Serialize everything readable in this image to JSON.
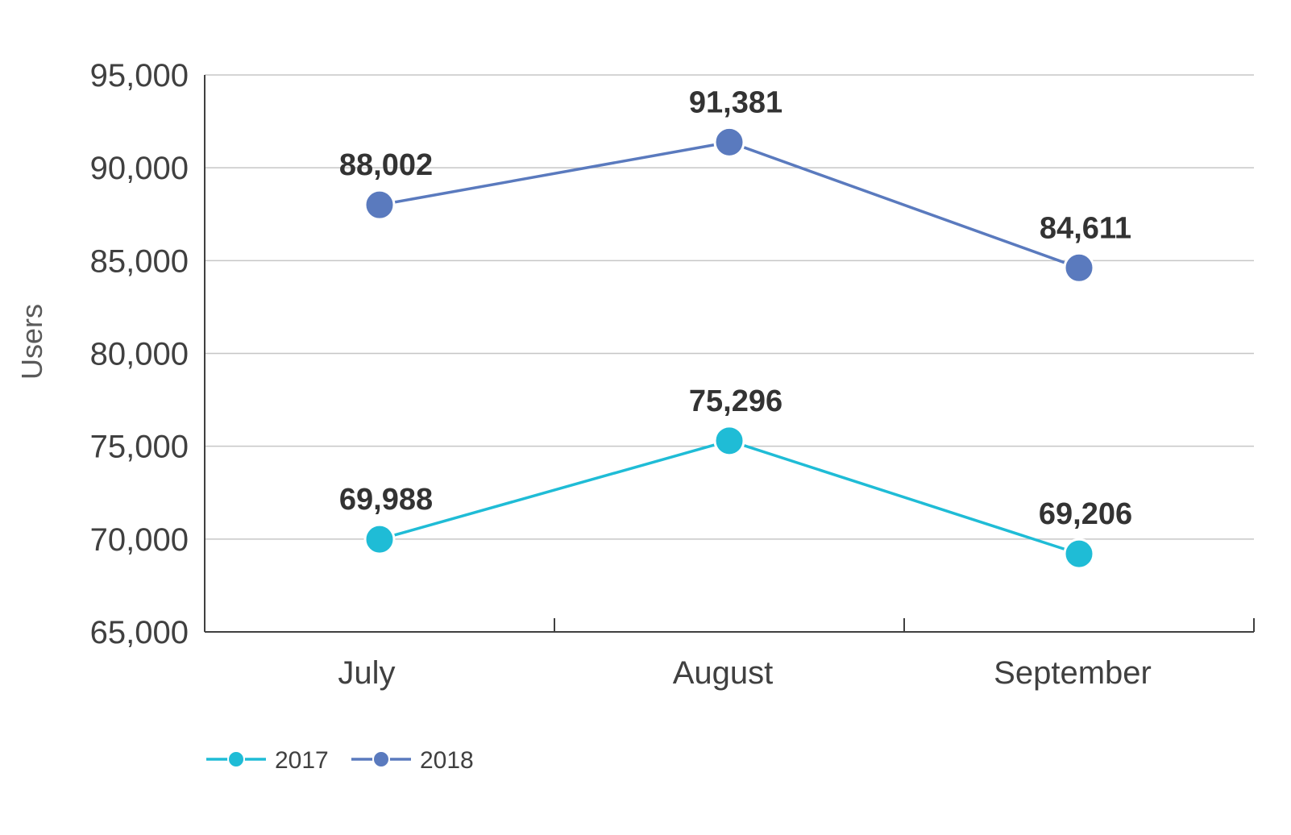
{
  "chart_data": {
    "type": "line",
    "title": "",
    "xlabel": "",
    "ylabel": "Users",
    "categories": [
      "July",
      "August",
      "September"
    ],
    "ylim": [
      65000,
      95000
    ],
    "yticks": [
      65000,
      70000,
      75000,
      80000,
      85000,
      90000,
      95000
    ],
    "ytick_labels": [
      "65,000",
      "70,000",
      "75,000",
      "80,000",
      "85,000",
      "90,000",
      "95,000"
    ],
    "grid": true,
    "legend_position": "bottom-left",
    "series": [
      {
        "name": "2017",
        "color": "#1fbcd6",
        "values": [
          69988,
          75296,
          69206
        ],
        "labels": [
          "69,988",
          "75,296",
          "69,206"
        ]
      },
      {
        "name": "2018",
        "color": "#5a7abe",
        "values": [
          88002,
          91381,
          84611
        ],
        "labels": [
          "88,002",
          "91,381",
          "84,611"
        ]
      }
    ]
  }
}
